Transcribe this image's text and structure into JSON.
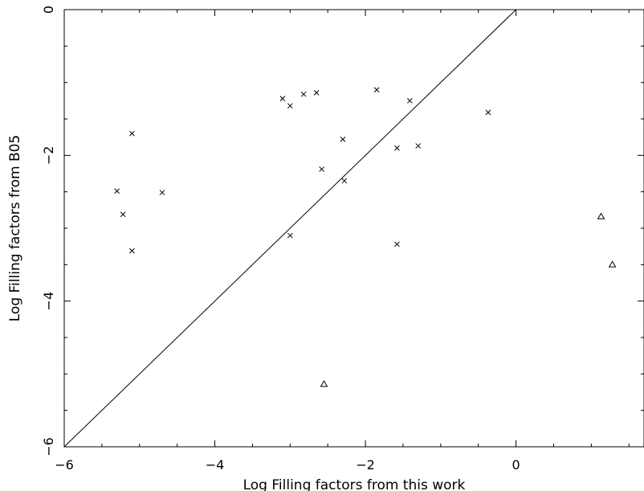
{
  "chart_data": {
    "type": "scatter",
    "xlabel": "Log Filling factors from this work",
    "ylabel": "Log Filling factors from B05",
    "xlim": [
      -6,
      1.7
    ],
    "ylim": [
      -6,
      0
    ],
    "xticks": [
      -6,
      -4,
      -2,
      0
    ],
    "xtick_labels": [
      "−6",
      "−4",
      "−2",
      "0"
    ],
    "yticks": [
      -6,
      -4,
      -2,
      0
    ],
    "ytick_labels": [
      "−6",
      "−4",
      "−2",
      "0"
    ],
    "grid": false,
    "legend": "none",
    "reference_line": {
      "from": [
        -6,
        -6
      ],
      "to": [
        0,
        0
      ]
    },
    "series": [
      {
        "marker": "cross",
        "points": [
          [
            -3.1,
            -1.22
          ],
          [
            -3.0,
            -1.32
          ],
          [
            -2.82,
            -1.16
          ],
          [
            -2.65,
            -1.14
          ],
          [
            -1.85,
            -1.1
          ],
          [
            -1.41,
            -1.25
          ],
          [
            -0.37,
            -1.41
          ],
          [
            -5.1,
            -1.7
          ],
          [
            -2.3,
            -1.78
          ],
          [
            -1.58,
            -1.9
          ],
          [
            -1.3,
            -1.87
          ],
          [
            -2.58,
            -2.19
          ],
          [
            -2.28,
            -2.35
          ],
          [
            -5.3,
            -2.49
          ],
          [
            -4.7,
            -2.51
          ],
          [
            -5.22,
            -2.81
          ],
          [
            -3.0,
            -3.1
          ],
          [
            -1.58,
            -3.22
          ],
          [
            -5.1,
            -3.31
          ]
        ]
      },
      {
        "marker": "triangle",
        "points": [
          [
            -2.55,
            -5.14
          ],
          [
            1.13,
            -2.84
          ],
          [
            1.28,
            -3.5
          ]
        ]
      }
    ]
  }
}
